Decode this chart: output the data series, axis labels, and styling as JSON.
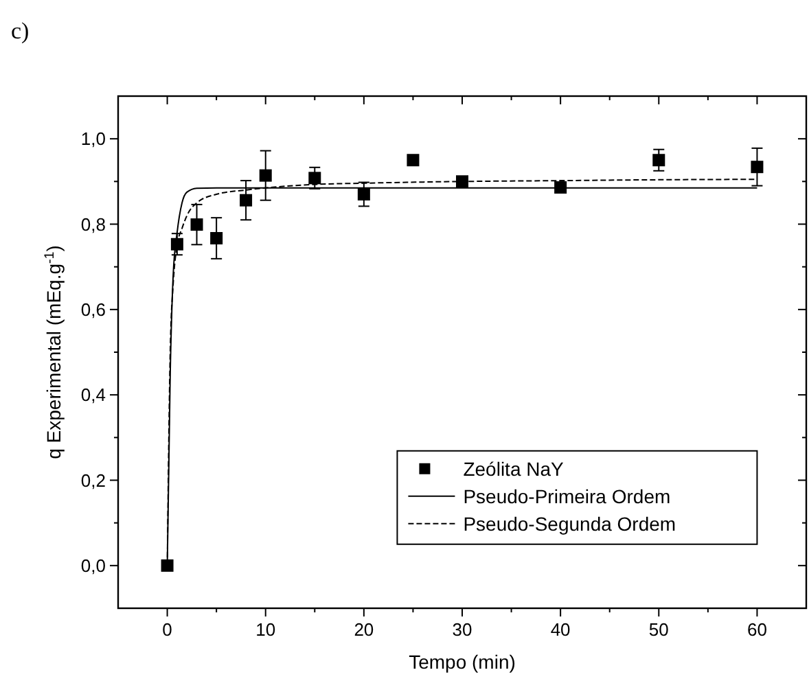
{
  "chart_data": {
    "type": "scatter",
    "title": "c)",
    "xlabel": "Tempo (min)",
    "ylabel": "q Experimental (mEq.g$^{-1}$)",
    "xlim": [
      -5,
      65
    ],
    "ylim": [
      -0.1,
      1.1
    ],
    "xticks": [
      0,
      10,
      20,
      30,
      40,
      50,
      60
    ],
    "yticks": [
      {
        "value": 0,
        "label": "0,0"
      },
      {
        "value": 0.2,
        "label": "0,2"
      },
      {
        "value": 0.4,
        "label": "0,4"
      },
      {
        "value": 0.6,
        "label": "0,6"
      },
      {
        "value": 0.8,
        "label": "0,8"
      },
      {
        "value": 1.0,
        "label": "1,0"
      }
    ],
    "grid": false,
    "legend": "bottom right",
    "series": [
      {
        "name": "Zeólita NaY",
        "marker": "square",
        "color": "#000000",
        "x": [
          0,
          1,
          3,
          5,
          8,
          10,
          15,
          20,
          25,
          30,
          40,
          50,
          60
        ],
        "values": [
          0,
          0.753,
          0.799,
          0.767,
          0.856,
          0.914,
          0.908,
          0.87,
          0.95,
          0.9,
          0.886,
          0.95,
          0.934
        ],
        "errors": [
          null,
          0.025,
          0.047,
          0.048,
          0.046,
          0.058,
          0.025,
          0.028,
          null,
          null,
          null,
          0.025,
          0.044
        ]
      },
      {
        "name": "Pseudo-Primeira Ordem",
        "type": "line",
        "line_style": "solid",
        "color": "#000000",
        "x": [
          0,
          0.3,
          0.6,
          1,
          1.5,
          2,
          3,
          5,
          10,
          20,
          30,
          40,
          50,
          60
        ],
        "values": [
          0,
          0.45,
          0.68,
          0.78,
          0.85,
          0.875,
          0.884,
          0.885,
          0.885,
          0.885,
          0.885,
          0.885,
          0.885,
          0.885
        ]
      },
      {
        "name": "Pseudo-Segunda Ordem",
        "type": "line",
        "line_style": "dashed",
        "color": "#000000",
        "x": [
          0,
          0.3,
          0.6,
          1,
          1.5,
          2,
          3,
          5,
          8,
          10,
          15,
          20,
          30,
          40,
          50,
          60
        ],
        "values": [
          0,
          0.5,
          0.66,
          0.75,
          0.79,
          0.82,
          0.85,
          0.87,
          0.88,
          0.885,
          0.893,
          0.896,
          0.9,
          0.902,
          0.904,
          0.905
        ]
      }
    ]
  }
}
